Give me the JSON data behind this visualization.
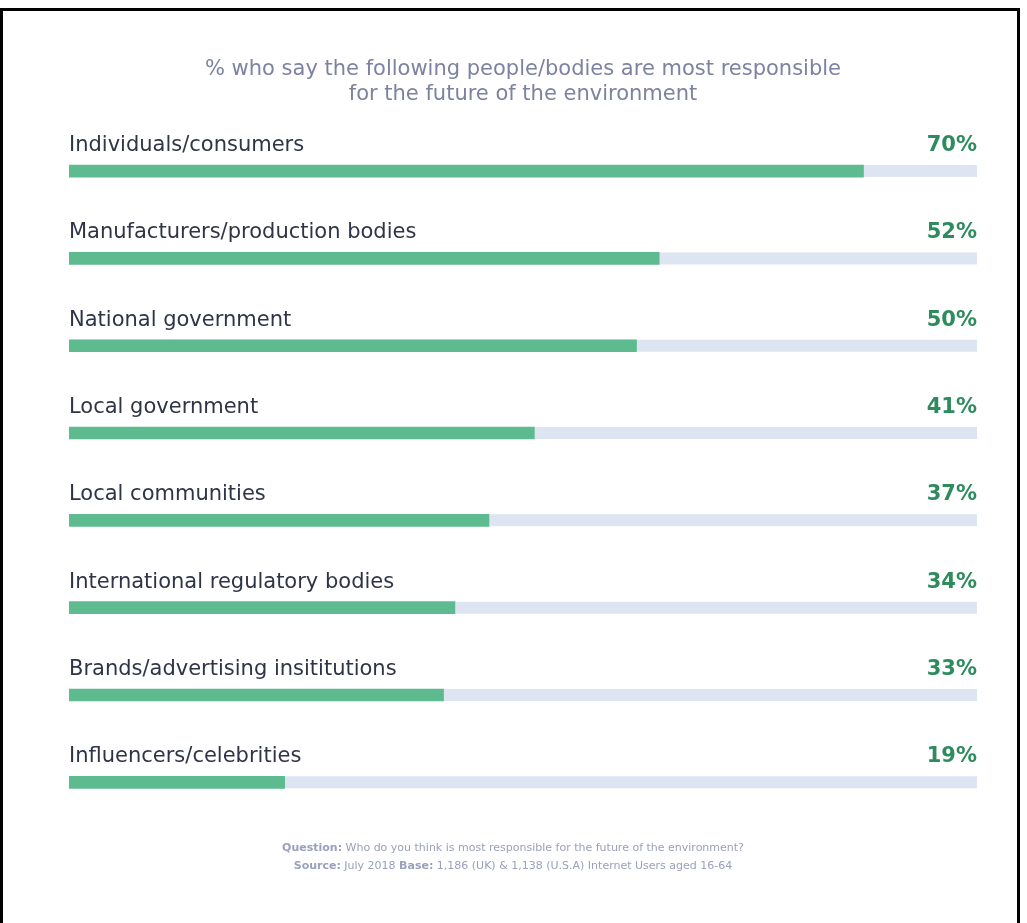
{
  "chart_data": {
    "type": "bar",
    "orientation": "horizontal",
    "title": [
      "% who say the following people/bodies are most responsible",
      "for the future of the environment"
    ],
    "categories": [
      "Individuals/consumers",
      "Manufacturers/production bodies",
      "National government",
      "Local government",
      "Local communities",
      "International regulatory bodies",
      "Brands/advertising insititutions",
      "Influencers/celebrities"
    ],
    "values": [
      70,
      52,
      50,
      41,
      37,
      34,
      33,
      19
    ],
    "value_labels": [
      "70%",
      "52%",
      "50%",
      "41%",
      "37%",
      "34%",
      "33%",
      "19%"
    ],
    "color": "#5dbb8f",
    "xlim": [
      0,
      80
    ],
    "annotations": [
      "Question: Who do you think is most responsible for the future of the environment?",
      "Source: July 2018  Base: 1,186 (UK) & 1,138 (U.S.A) Internet Users aged 16-64"
    ]
  }
}
